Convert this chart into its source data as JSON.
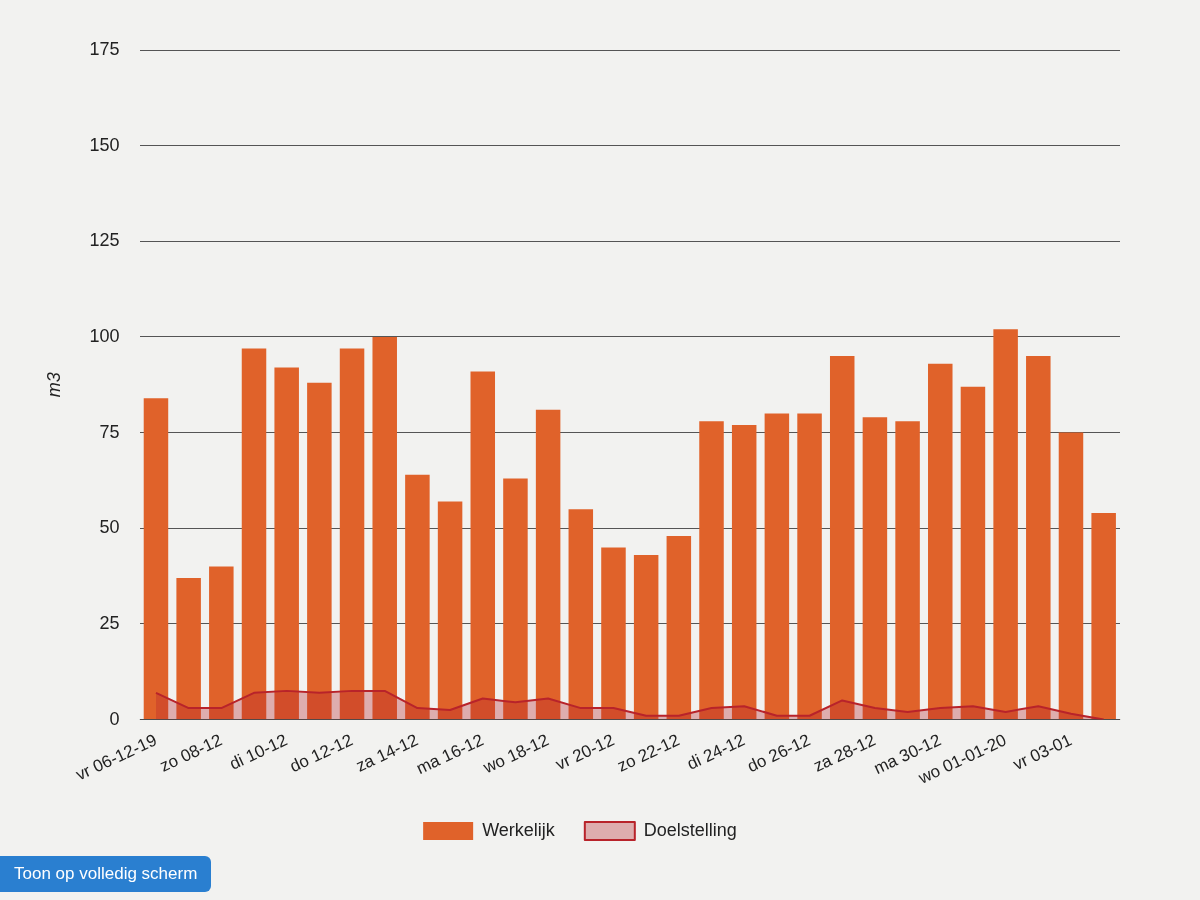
{
  "chart_data": {
    "type": "bar",
    "categories": [
      "vr 06-12-19",
      null,
      "zo 08-12",
      null,
      "di 10-12",
      null,
      "do 12-12",
      null,
      "za 14-12",
      null,
      "ma 16-12",
      null,
      "wo 18-12",
      null,
      "vr 20-12",
      null,
      "zo 22-12",
      null,
      "di 24-12",
      null,
      "do 26-12",
      null,
      "za 28-12",
      null,
      "ma 30-12",
      null,
      "wo 01-01-20",
      null,
      "vr 03-01",
      null
    ],
    "series": [
      {
        "name": "Werkelijk",
        "color": "#e0622a",
        "values": [
          84,
          37,
          40,
          97,
          92,
          88,
          97,
          100,
          64,
          57,
          91,
          63,
          81,
          55,
          45,
          43,
          48,
          78,
          77,
          80,
          80,
          95,
          79,
          78,
          93,
          87,
          102,
          95,
          75,
          54
        ]
      },
      {
        "name": "Doelstelling",
        "type": "area",
        "color": "#b8232a",
        "values": [
          7,
          3,
          3,
          7,
          7.5,
          7,
          7.5,
          7.5,
          3,
          2.5,
          5.5,
          4.5,
          5.5,
          3,
          3,
          1,
          1,
          3,
          3.5,
          1,
          1,
          5,
          3,
          2,
          3,
          3.5,
          2,
          3.5,
          1.5,
          0
        ]
      }
    ],
    "ylabel": "m3",
    "ylim": [
      0,
      175
    ],
    "yticks": [
      0,
      25,
      50,
      75,
      100,
      125,
      150,
      175
    ],
    "grid": "y",
    "legend": "bottom",
    "annotations": [
      "Toon op volledig scherm"
    ]
  }
}
